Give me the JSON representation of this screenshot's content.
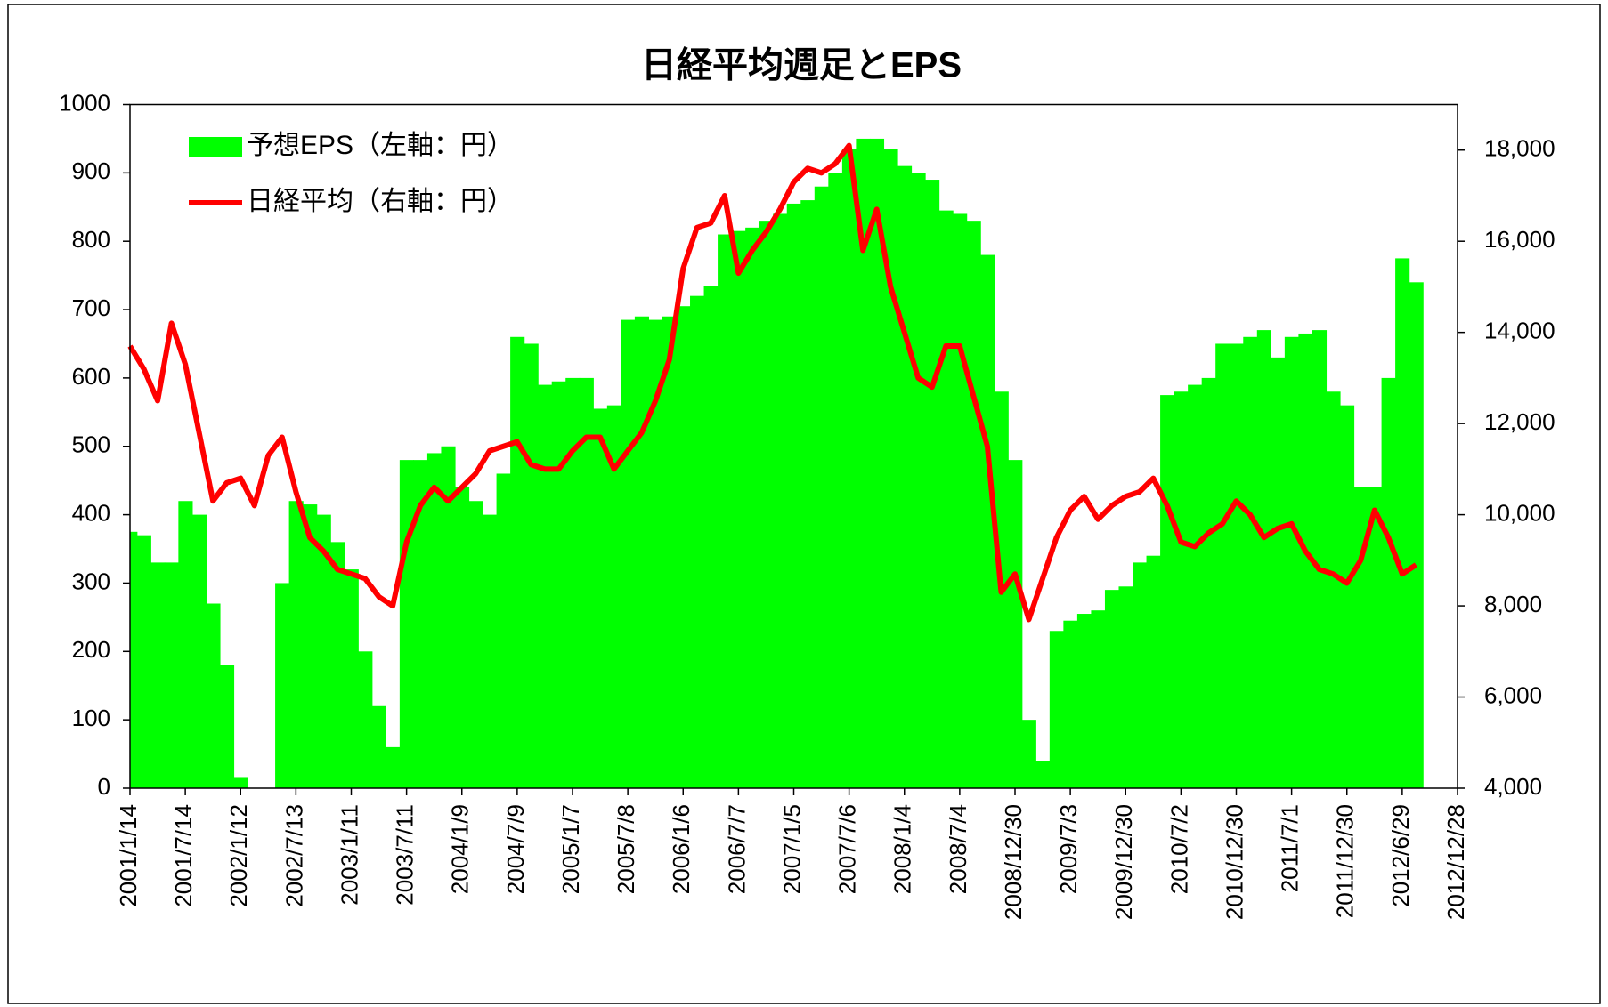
{
  "chart_data": {
    "type": "bar",
    "title": "日経平均週足とEPS",
    "categories": [
      "2001/1/14",
      null,
      null,
      null,
      "2001/7/14",
      null,
      null,
      null,
      "2002/1/12",
      null,
      null,
      null,
      "2002/7/13",
      null,
      null,
      null,
      "2003/1/11",
      null,
      null,
      null,
      "2003/7/11",
      null,
      null,
      null,
      "2004/1/9",
      null,
      null,
      null,
      "2004/7/9",
      null,
      null,
      null,
      "2005/1/7",
      null,
      null,
      null,
      "2005/7/8",
      null,
      null,
      null,
      "2006/1/6",
      null,
      null,
      null,
      "2006/7/7",
      null,
      null,
      null,
      "2007/1/5",
      null,
      null,
      null,
      "2007/7/6",
      null,
      null,
      null,
      "2008/1/4",
      null,
      null,
      null,
      "2008/7/4",
      null,
      null,
      null,
      "2008/12/30",
      null,
      null,
      null,
      "2009/7/3",
      null,
      null,
      null,
      "2009/12/30",
      null,
      null,
      null,
      "2010/7/2",
      null,
      null,
      null,
      "2010/12/30",
      null,
      null,
      null,
      "2011/7/1",
      null,
      null,
      null,
      "2011/12/30",
      null,
      null,
      null,
      "2012/6/29",
      null,
      null,
      null,
      "2012/12/28"
    ],
    "series": [
      {
        "name": "予想EPS（左軸：円）",
        "type": "bar",
        "color": "#00ff00",
        "values": [
          375,
          370,
          330,
          330,
          420,
          400,
          270,
          180,
          15,
          null,
          null,
          300,
          420,
          415,
          400,
          360,
          320,
          200,
          120,
          60,
          480,
          480,
          490,
          500,
          440,
          420,
          400,
          460,
          660,
          650,
          590,
          595,
          600,
          600,
          555,
          560,
          685,
          690,
          685,
          690,
          705,
          720,
          735,
          810,
          815,
          820,
          830,
          840,
          855,
          860,
          880,
          900,
          935,
          950,
          950,
          935,
          910,
          900,
          890,
          845,
          840,
          830,
          780,
          580,
          480,
          100,
          40,
          230,
          245,
          255,
          260,
          290,
          295,
          330,
          340,
          575,
          580,
          590,
          600,
          650,
          650,
          660,
          670,
          630,
          660,
          665,
          670,
          580,
          560,
          440,
          440,
          600,
          775,
          740,
          null,
          null,
          null
        ]
      },
      {
        "name": "日経平均（右軸：円）",
        "type": "line",
        "axis": "y2",
        "color": "#ff0000",
        "values": [
          13700,
          13200,
          12500,
          14200,
          13300,
          11800,
          10300,
          10700,
          10800,
          10200,
          11300,
          11700,
          10500,
          9500,
          9200,
          8800,
          8700,
          8600,
          8200,
          8000,
          9400,
          10200,
          10600,
          10300,
          10600,
          10900,
          11400,
          11500,
          11600,
          11100,
          11000,
          11000,
          11400,
          11700,
          11700,
          11000,
          11400,
          11800,
          12500,
          13400,
          15400,
          16300,
          16400,
          17000,
          15300,
          15800,
          16200,
          16700,
          17300,
          17600,
          17500,
          17700,
          18100,
          15800,
          16700,
          15000,
          14000,
          13000,
          12800,
          13700,
          13700,
          12600,
          11500,
          8300,
          8700,
          7700,
          8600,
          9500,
          10100,
          10400,
          9900,
          10200,
          10400,
          10500,
          10800,
          10200,
          9400,
          9300,
          9600,
          9800,
          10300,
          10000,
          9500,
          9700,
          9800,
          9200,
          8800,
          8700,
          8500,
          9000,
          10100,
          9500,
          8700,
          8900,
          null,
          null,
          null
        ]
      }
    ],
    "ylim": [
      0,
      1000
    ],
    "yticks": [
      0,
      100,
      200,
      300,
      400,
      500,
      600,
      700,
      800,
      900,
      1000
    ],
    "y2lim": [
      4000,
      19000
    ],
    "y2ticks": [
      {
        "value": 4000,
        "label": "4,000"
      },
      {
        "value": 6000,
        "label": "6,000"
      },
      {
        "value": 8000,
        "label": "8,000"
      },
      {
        "value": 10000,
        "label": "10,000"
      },
      {
        "value": 12000,
        "label": "12,000"
      },
      {
        "value": 14000,
        "label": "14,000"
      },
      {
        "value": 16000,
        "label": "16,000"
      },
      {
        "value": 18000,
        "label": "18,000"
      }
    ],
    "legend": "upper left"
  }
}
